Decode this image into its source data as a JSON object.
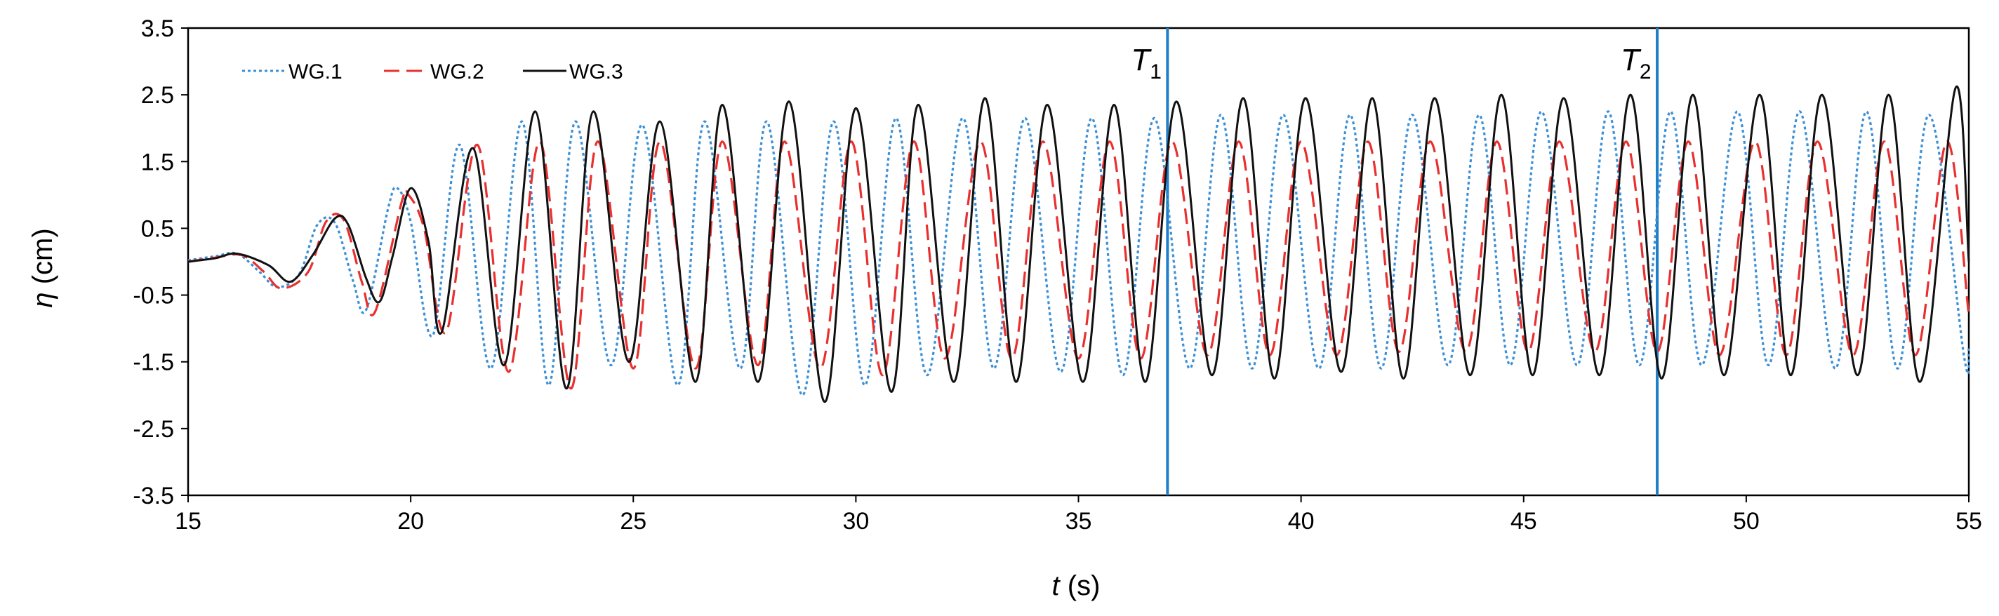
{
  "chart_data": {
    "type": "line",
    "xlabel": {
      "symbol": "t",
      "unit": " (s)"
    },
    "ylabel": {
      "symbol": "η",
      "unit": " (cm)"
    },
    "xlim": [
      15,
      55
    ],
    "ylim": [
      -3.5,
      3.5
    ],
    "x_ticks": [
      "15",
      "20",
      "25",
      "30",
      "35",
      "40",
      "45",
      "50",
      "55"
    ],
    "y_ticks": [
      "3.5",
      "2.5",
      "1.5",
      "0.5",
      "-0.5",
      "-1.5",
      "-2.5",
      "-3.5"
    ],
    "grid": false,
    "legend_position": "top-left",
    "series": [
      {
        "name": "WG.1",
        "color": "#3a8fd6",
        "dash": "dotted",
        "points": [
          [
            15.0,
            0.02
          ],
          [
            15.6,
            0.08
          ],
          [
            16.1,
            0.12
          ],
          [
            16.6,
            -0.15
          ],
          [
            17.0,
            -0.38
          ],
          [
            17.5,
            -0.18
          ],
          [
            17.9,
            0.55
          ],
          [
            18.3,
            0.58
          ],
          [
            18.7,
            -0.28
          ],
          [
            19.0,
            -0.72
          ],
          [
            19.5,
            0.82
          ],
          [
            19.7,
            1.1
          ],
          [
            20.0,
            0.6
          ],
          [
            20.5,
            -1.1
          ],
          [
            21.1,
            1.75
          ],
          [
            21.8,
            -1.6
          ],
          [
            22.5,
            2.1
          ],
          [
            23.1,
            -1.85
          ],
          [
            23.7,
            2.1
          ],
          [
            24.5,
            -1.55
          ],
          [
            25.2,
            2.05
          ],
          [
            26.0,
            -1.85
          ],
          [
            26.6,
            2.1
          ],
          [
            27.4,
            -1.6
          ],
          [
            28.0,
            2.1
          ],
          [
            28.8,
            -2.0
          ],
          [
            29.5,
            2.1
          ],
          [
            30.2,
            -1.85
          ],
          [
            30.9,
            2.15
          ],
          [
            31.6,
            -1.7
          ],
          [
            32.4,
            2.15
          ],
          [
            33.1,
            -1.6
          ],
          [
            33.8,
            2.15
          ],
          [
            34.6,
            -1.65
          ],
          [
            35.3,
            2.15
          ],
          [
            36.0,
            -1.7
          ],
          [
            36.7,
            2.15
          ],
          [
            37.5,
            -1.6
          ],
          [
            38.2,
            2.2
          ],
          [
            38.9,
            -1.6
          ],
          [
            39.6,
            2.2
          ],
          [
            40.4,
            -1.6
          ],
          [
            41.1,
            2.2
          ],
          [
            41.8,
            -1.6
          ],
          [
            42.5,
            2.2
          ],
          [
            43.3,
            -1.55
          ],
          [
            44.0,
            2.2
          ],
          [
            44.7,
            -1.55
          ],
          [
            45.4,
            2.25
          ],
          [
            46.2,
            -1.55
          ],
          [
            46.9,
            2.25
          ],
          [
            47.6,
            -1.55
          ],
          [
            48.3,
            2.25
          ],
          [
            49.0,
            -1.55
          ],
          [
            49.8,
            2.25
          ],
          [
            50.5,
            -1.55
          ],
          [
            51.2,
            2.25
          ],
          [
            52.0,
            -1.6
          ],
          [
            52.7,
            2.25
          ],
          [
            53.4,
            -1.6
          ],
          [
            54.1,
            2.2
          ],
          [
            54.9,
            -1.45
          ],
          [
            55.0,
            -1.3
          ]
        ]
      },
      {
        "name": "WG.2",
        "color": "#e8302f",
        "dash": "dashed",
        "points": [
          [
            15.0,
            0.0
          ],
          [
            15.6,
            0.06
          ],
          [
            16.2,
            0.1
          ],
          [
            16.7,
            -0.15
          ],
          [
            17.1,
            -0.4
          ],
          [
            17.7,
            -0.15
          ],
          [
            18.1,
            0.6
          ],
          [
            18.5,
            0.62
          ],
          [
            18.9,
            -0.3
          ],
          [
            19.2,
            -0.75
          ],
          [
            19.8,
            0.9
          ],
          [
            19.95,
            1.0
          ],
          [
            20.3,
            0.5
          ],
          [
            20.8,
            -1.05
          ],
          [
            21.5,
            1.75
          ],
          [
            22.2,
            -1.65
          ],
          [
            22.9,
            1.8
          ],
          [
            23.6,
            -1.9
          ],
          [
            24.2,
            1.8
          ],
          [
            25.0,
            -1.6
          ],
          [
            25.6,
            1.8
          ],
          [
            26.4,
            -1.6
          ],
          [
            27.0,
            1.8
          ],
          [
            27.8,
            -1.55
          ],
          [
            28.4,
            1.8
          ],
          [
            29.2,
            -1.6
          ],
          [
            29.9,
            1.8
          ],
          [
            30.6,
            -1.7
          ],
          [
            31.3,
            1.8
          ],
          [
            32.0,
            -1.45
          ],
          [
            32.8,
            1.8
          ],
          [
            33.5,
            -1.45
          ],
          [
            34.2,
            1.8
          ],
          [
            35.0,
            -1.45
          ],
          [
            35.7,
            1.8
          ],
          [
            36.4,
            -1.45
          ],
          [
            37.1,
            1.8
          ],
          [
            37.9,
            -1.4
          ],
          [
            38.6,
            1.8
          ],
          [
            39.3,
            -1.4
          ],
          [
            40.0,
            1.8
          ],
          [
            40.8,
            -1.4
          ],
          [
            41.5,
            1.8
          ],
          [
            42.2,
            -1.35
          ],
          [
            42.9,
            1.8
          ],
          [
            43.7,
            -1.35
          ],
          [
            44.4,
            1.8
          ],
          [
            45.1,
            -1.35
          ],
          [
            45.8,
            1.8
          ],
          [
            46.6,
            -1.35
          ],
          [
            47.3,
            1.8
          ],
          [
            48.0,
            -1.35
          ],
          [
            48.7,
            1.8
          ],
          [
            49.4,
            -1.4
          ],
          [
            50.2,
            1.8
          ],
          [
            50.9,
            -1.4
          ],
          [
            51.6,
            1.8
          ],
          [
            52.4,
            -1.4
          ],
          [
            53.1,
            1.8
          ],
          [
            53.8,
            -1.4
          ],
          [
            54.5,
            1.8
          ],
          [
            55.0,
            -0.8
          ]
        ]
      },
      {
        "name": "WG.3",
        "color": "#111111",
        "dash": "solid",
        "points": [
          [
            15.0,
            0.0
          ],
          [
            15.6,
            0.05
          ],
          [
            16.1,
            0.12
          ],
          [
            16.8,
            -0.05
          ],
          [
            17.3,
            -0.3
          ],
          [
            17.8,
            0.1
          ],
          [
            18.3,
            0.65
          ],
          [
            18.6,
            0.55
          ],
          [
            19.0,
            -0.25
          ],
          [
            19.3,
            -0.6
          ],
          [
            19.6,
            0.1
          ],
          [
            20.0,
            1.1
          ],
          [
            20.4,
            0.3
          ],
          [
            20.7,
            -1.05
          ],
          [
            21.4,
            1.7
          ],
          [
            22.1,
            -1.55
          ],
          [
            22.8,
            2.25
          ],
          [
            23.5,
            -1.9
          ],
          [
            24.1,
            2.25
          ],
          [
            24.9,
            -1.5
          ],
          [
            25.6,
            2.1
          ],
          [
            26.4,
            -1.8
          ],
          [
            27.0,
            2.35
          ],
          [
            27.8,
            -1.8
          ],
          [
            28.5,
            2.4
          ],
          [
            29.3,
            -2.1
          ],
          [
            30.0,
            2.3
          ],
          [
            30.8,
            -1.95
          ],
          [
            31.4,
            2.35
          ],
          [
            32.2,
            -1.8
          ],
          [
            32.9,
            2.45
          ],
          [
            33.6,
            -1.8
          ],
          [
            34.3,
            2.35
          ],
          [
            35.1,
            -1.8
          ],
          [
            35.8,
            2.35
          ],
          [
            36.5,
            -1.8
          ],
          [
            37.2,
            2.4
          ],
          [
            38.0,
            -1.7
          ],
          [
            38.7,
            2.45
          ],
          [
            39.4,
            -1.75
          ],
          [
            40.1,
            2.45
          ],
          [
            40.9,
            -1.65
          ],
          [
            41.6,
            2.45
          ],
          [
            42.3,
            -1.75
          ],
          [
            43.0,
            2.45
          ],
          [
            43.8,
            -1.7
          ],
          [
            44.5,
            2.5
          ],
          [
            45.2,
            -1.7
          ],
          [
            45.9,
            2.45
          ],
          [
            46.7,
            -1.7
          ],
          [
            47.4,
            2.5
          ],
          [
            48.1,
            -1.75
          ],
          [
            48.8,
            2.5
          ],
          [
            49.5,
            -1.7
          ],
          [
            50.3,
            2.5
          ],
          [
            51.0,
            -1.7
          ],
          [
            51.7,
            2.5
          ],
          [
            52.5,
            -1.7
          ],
          [
            53.2,
            2.5
          ],
          [
            53.9,
            -1.8
          ],
          [
            54.7,
            2.6
          ],
          [
            55.0,
            0.0
          ]
        ]
      }
    ],
    "markers": [
      {
        "label": "T",
        "sub": "1",
        "x": 37.0,
        "color": "#1f7fc8"
      },
      {
        "label": "T",
        "sub": "2",
        "x": 48.0,
        "color": "#1f7fc8"
      }
    ]
  }
}
